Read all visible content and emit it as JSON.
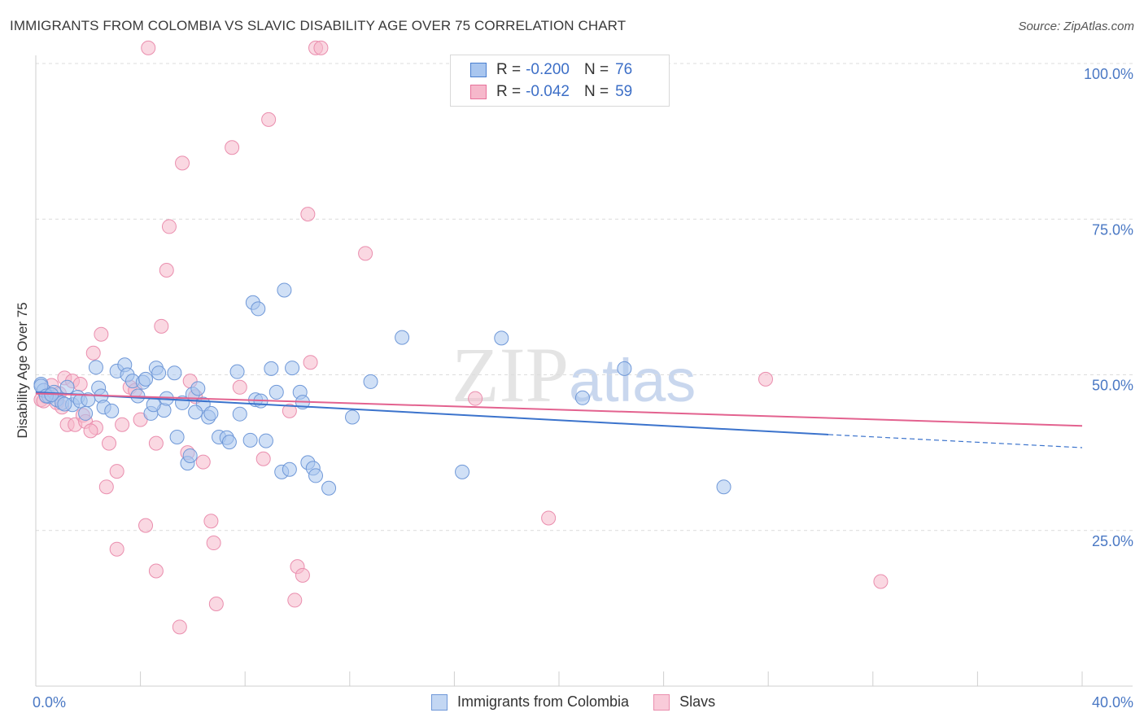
{
  "title": "IMMIGRANTS FROM COLOMBIA VS SLAVIC DISABILITY AGE OVER 75 CORRELATION CHART",
  "source": "Source: ZipAtlas.com",
  "watermark": {
    "zip": "ZIP",
    "atlas": "atlas"
  },
  "legend_top": {
    "r_label": "R =",
    "n_label": "N =",
    "rows": [
      {
        "r": "-0.200",
        "n": "76"
      },
      {
        "r": "-0.042",
        "n": "59"
      }
    ]
  },
  "legend_bottom": [
    "Immigrants from Colombia",
    "Slavs"
  ],
  "colors": {
    "blue": "#4a7fd0",
    "blue_fill": "#a9c6ef",
    "pink": "#e8719b",
    "pink_fill": "#f6b8cb",
    "tick": "#4a78c4"
  },
  "chart_data": {
    "type": "scatter",
    "title": "IMMIGRANTS FROM COLOMBIA VS SLAVIC DISABILITY AGE OVER 75 CORRELATION CHART",
    "xlabel": "",
    "ylabel": "Disability Age Over 75",
    "xlim": [
      0,
      40
    ],
    "ylim": [
      0,
      105
    ],
    "x_ticks": [
      "0.0%",
      "40.0%"
    ],
    "y_ticks": [
      "25.0%",
      "50.0%",
      "75.0%",
      "100.0%"
    ],
    "y_tick_values": [
      25,
      50,
      75,
      100
    ],
    "grid": true,
    "series": [
      {
        "name": "Immigrants from Colombia",
        "color": "#4a7fd0",
        "trend": {
          "x0": 0,
          "y0": 47.2,
          "x1": 30.3,
          "y1": 40.4,
          "dash_to_x": 40,
          "dash_to_y": 38.3
        },
        "points": [
          [
            0.2,
            48.5
          ],
          [
            0.3,
            47.5
          ],
          [
            0.5,
            46.5
          ],
          [
            0.7,
            47.2
          ],
          [
            0.8,
            46.0
          ],
          [
            1.0,
            45.5
          ],
          [
            1.2,
            48.0
          ],
          [
            1.4,
            45.2
          ],
          [
            1.6,
            46.4
          ],
          [
            1.7,
            45.8
          ],
          [
            1.9,
            43.8
          ],
          [
            2.3,
            51.2
          ],
          [
            2.4,
            47.9
          ],
          [
            2.5,
            46.6
          ],
          [
            2.6,
            44.8
          ],
          [
            2.9,
            44.2
          ],
          [
            3.1,
            50.6
          ],
          [
            3.4,
            51.6
          ],
          [
            3.5,
            50.0
          ],
          [
            3.7,
            49.0
          ],
          [
            3.9,
            46.6
          ],
          [
            4.1,
            48.8
          ],
          [
            4.2,
            49.3
          ],
          [
            4.4,
            43.8
          ],
          [
            4.6,
            51.1
          ],
          [
            4.7,
            50.3
          ],
          [
            4.9,
            44.3
          ],
          [
            5.0,
            46.2
          ],
          [
            5.3,
            50.3
          ],
          [
            5.4,
            40.0
          ],
          [
            5.6,
            45.5
          ],
          [
            5.8,
            35.8
          ],
          [
            5.9,
            37.0
          ],
          [
            6.0,
            46.9
          ],
          [
            6.2,
            47.8
          ],
          [
            6.4,
            45.3
          ],
          [
            6.6,
            43.2
          ],
          [
            6.7,
            43.8
          ],
          [
            7.0,
            40.0
          ],
          [
            7.3,
            39.9
          ],
          [
            7.4,
            39.2
          ],
          [
            7.7,
            50.5
          ],
          [
            7.8,
            43.7
          ],
          [
            8.2,
            39.5
          ],
          [
            8.4,
            46.0
          ],
          [
            8.3,
            61.6
          ],
          [
            8.5,
            60.6
          ],
          [
            8.6,
            45.8
          ],
          [
            8.8,
            39.4
          ],
          [
            9.0,
            51.0
          ],
          [
            9.2,
            47.2
          ],
          [
            9.4,
            34.4
          ],
          [
            9.5,
            63.6
          ],
          [
            9.7,
            34.8
          ],
          [
            9.8,
            51.1
          ],
          [
            10.1,
            47.2
          ],
          [
            10.2,
            45.6
          ],
          [
            10.4,
            35.9
          ],
          [
            10.6,
            35.0
          ],
          [
            10.7,
            33.8
          ],
          [
            11.2,
            31.8
          ],
          [
            12.1,
            43.2
          ],
          [
            12.8,
            48.9
          ],
          [
            14.0,
            56.0
          ],
          [
            16.3,
            34.4
          ],
          [
            17.8,
            55.9
          ],
          [
            20.9,
            46.3
          ],
          [
            22.5,
            51.0
          ],
          [
            26.3,
            32.0
          ],
          [
            0.2,
            48.2
          ],
          [
            0.4,
            46.6
          ],
          [
            0.6,
            46.8
          ],
          [
            1.1,
            45.3
          ],
          [
            2.0,
            46.0
          ],
          [
            4.5,
            45.2
          ],
          [
            6.1,
            44.0
          ]
        ]
      },
      {
        "name": "Slavs",
        "color": "#e8719b",
        "trend": {
          "x0": 0,
          "y0": 47.0,
          "x1": 40,
          "y1": 41.8
        },
        "points": [
          [
            0.2,
            46.0
          ],
          [
            0.4,
            46.5
          ],
          [
            0.6,
            48.3
          ],
          [
            0.8,
            45.5
          ],
          [
            0.9,
            47.0
          ],
          [
            1.1,
            49.5
          ],
          [
            1.2,
            42.0
          ],
          [
            1.4,
            49.0
          ],
          [
            1.5,
            42.0
          ],
          [
            1.7,
            48.5
          ],
          [
            1.8,
            43.5
          ],
          [
            1.9,
            42.5
          ],
          [
            2.2,
            53.5
          ],
          [
            2.3,
            41.5
          ],
          [
            2.5,
            56.5
          ],
          [
            2.7,
            32.0
          ],
          [
            2.8,
            39.0
          ],
          [
            3.1,
            34.5
          ],
          [
            3.1,
            22.0
          ],
          [
            3.3,
            42.0
          ],
          [
            3.6,
            48.0
          ],
          [
            3.8,
            47.5
          ],
          [
            4.0,
            42.8
          ],
          [
            4.2,
            25.8
          ],
          [
            4.3,
            102.5
          ],
          [
            4.6,
            18.5
          ],
          [
            4.6,
            39.0
          ],
          [
            4.8,
            57.8
          ],
          [
            5.0,
            66.8
          ],
          [
            5.1,
            73.8
          ],
          [
            5.6,
            84.0
          ],
          [
            5.5,
            9.5
          ],
          [
            5.8,
            37.5
          ],
          [
            5.9,
            49.0
          ],
          [
            6.1,
            46.5
          ],
          [
            6.4,
            36.0
          ],
          [
            6.7,
            26.5
          ],
          [
            6.8,
            23.0
          ],
          [
            6.9,
            13.2
          ],
          [
            7.5,
            86.5
          ],
          [
            7.8,
            48.0
          ],
          [
            8.7,
            36.5
          ],
          [
            8.9,
            91.0
          ],
          [
            9.7,
            44.2
          ],
          [
            9.9,
            13.8
          ],
          [
            10.0,
            19.2
          ],
          [
            10.2,
            17.8
          ],
          [
            10.4,
            75.8
          ],
          [
            10.5,
            52.0
          ],
          [
            10.7,
            102.5
          ],
          [
            10.9,
            102.5
          ],
          [
            12.6,
            69.5
          ],
          [
            16.8,
            46.2
          ],
          [
            19.6,
            27.0
          ],
          [
            27.9,
            49.3
          ],
          [
            32.3,
            16.8
          ],
          [
            0.3,
            45.8
          ],
          [
            1.0,
            44.8
          ],
          [
            2.1,
            41.0
          ]
        ]
      }
    ]
  }
}
